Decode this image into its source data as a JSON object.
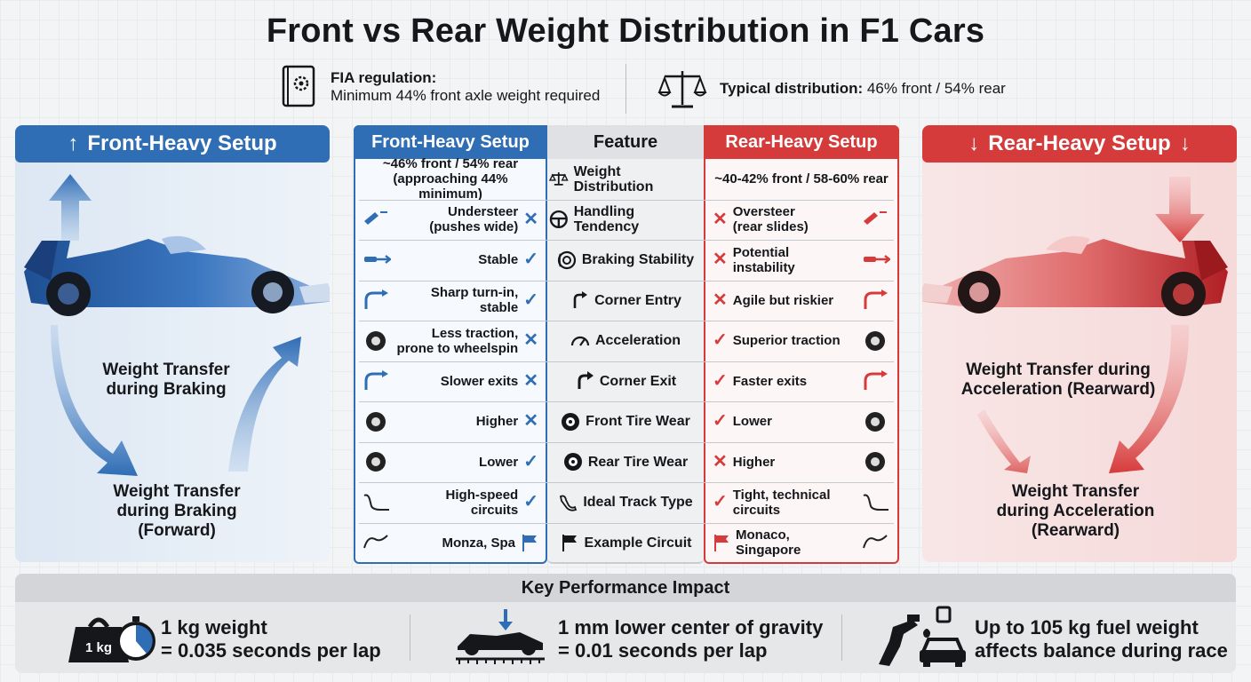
{
  "title": "Front vs Rear Weight Distribution in F1 Cars",
  "header": {
    "fia_label": "FIA regulation:",
    "fia_text": "Minimum 44% front axle weight required",
    "typical_label": "Typical distribution:",
    "typical_text": "46% front / 54% rear"
  },
  "left_panel": {
    "title": "Front-Heavy Setup",
    "label_mid": "Weight Transfer\nduring Braking",
    "label_bottom": "Weight Transfer\nduring Braking\n(Forward)"
  },
  "right_panel": {
    "title": "Rear-Heavy Setup",
    "label_mid": "Weight Transfer during\nAcceleration (Rearward)",
    "label_bottom": "Weight Transfer\nduring Acceleration\n(Rearward)"
  },
  "table": {
    "headers": {
      "front": "Front-Heavy Setup",
      "feature": "Feature",
      "rear": "Rear-Heavy Setup"
    },
    "rows": [
      {
        "feature": "Weight Distribution",
        "feature_icon": "scale-icon",
        "front": "~46% front / 54% rear\n(approaching 44% minimum)",
        "front_mark": "",
        "rear": "~40-42% front / 58-60% rear",
        "rear_mark": ""
      },
      {
        "feature": "Handling Tendency",
        "feature_icon": "steering-wheel-icon",
        "front": "Understeer\n(pushes wide)",
        "front_mark": "✕",
        "rear": "Oversteer\n(rear slides)",
        "rear_mark": "✕"
      },
      {
        "feature": "Braking Stability",
        "feature_icon": "brake-disc-icon",
        "front": "Stable",
        "front_mark": "✓",
        "rear": "Potential\ninstability",
        "rear_mark": "✕"
      },
      {
        "feature": "Corner Entry",
        "feature_icon": "turn-arrow-icon",
        "front": "Sharp turn-in,\nstable",
        "front_mark": "✓",
        "rear": "Agile but riskier",
        "rear_mark": "✕"
      },
      {
        "feature": "Acceleration",
        "feature_icon": "speedometer-icon",
        "front": "Less traction,\nprone to wheelspin",
        "front_mark": "✕",
        "rear": "Superior traction",
        "rear_mark": "✓"
      },
      {
        "feature": "Corner Exit",
        "feature_icon": "exit-arrow-icon",
        "front": "Slower exits",
        "front_mark": "✕",
        "rear": "Faster exits",
        "rear_mark": "✓"
      },
      {
        "feature": "Front Tire Wear",
        "feature_icon": "tire-icon",
        "front": "Higher",
        "front_mark": "✕",
        "rear": "Lower",
        "rear_mark": "✓"
      },
      {
        "feature": "Rear Tire Wear",
        "feature_icon": "tire-icon",
        "front": "Lower",
        "front_mark": "✓",
        "rear": "Higher",
        "rear_mark": "✕"
      },
      {
        "feature": "Ideal Track Type",
        "feature_icon": "track-icon",
        "front": "High-speed\ncircuits",
        "front_mark": "✓",
        "rear": "Tight, technical\ncircuits",
        "rear_mark": "✓"
      },
      {
        "feature": "Example Circuit",
        "feature_icon": "flag-icon",
        "front": "Monza, Spa",
        "front_mark": "flag",
        "rear": "Monaco, Singapore",
        "rear_mark": "flag"
      }
    ]
  },
  "impact": {
    "title": "Key Performance Impact",
    "items": [
      {
        "line1": "1 kg weight",
        "line2": "= 0.035 seconds per lap",
        "icon_text": "1 kg"
      },
      {
        "line1": "1 mm lower center of gravity",
        "line2": "= 0.01 seconds per lap"
      },
      {
        "line1": "Up to 105 kg fuel weight",
        "line2": "affects balance during race"
      }
    ]
  },
  "colors": {
    "front": "#2f6db5",
    "rear": "#d63b3b",
    "text": "#15171a"
  }
}
